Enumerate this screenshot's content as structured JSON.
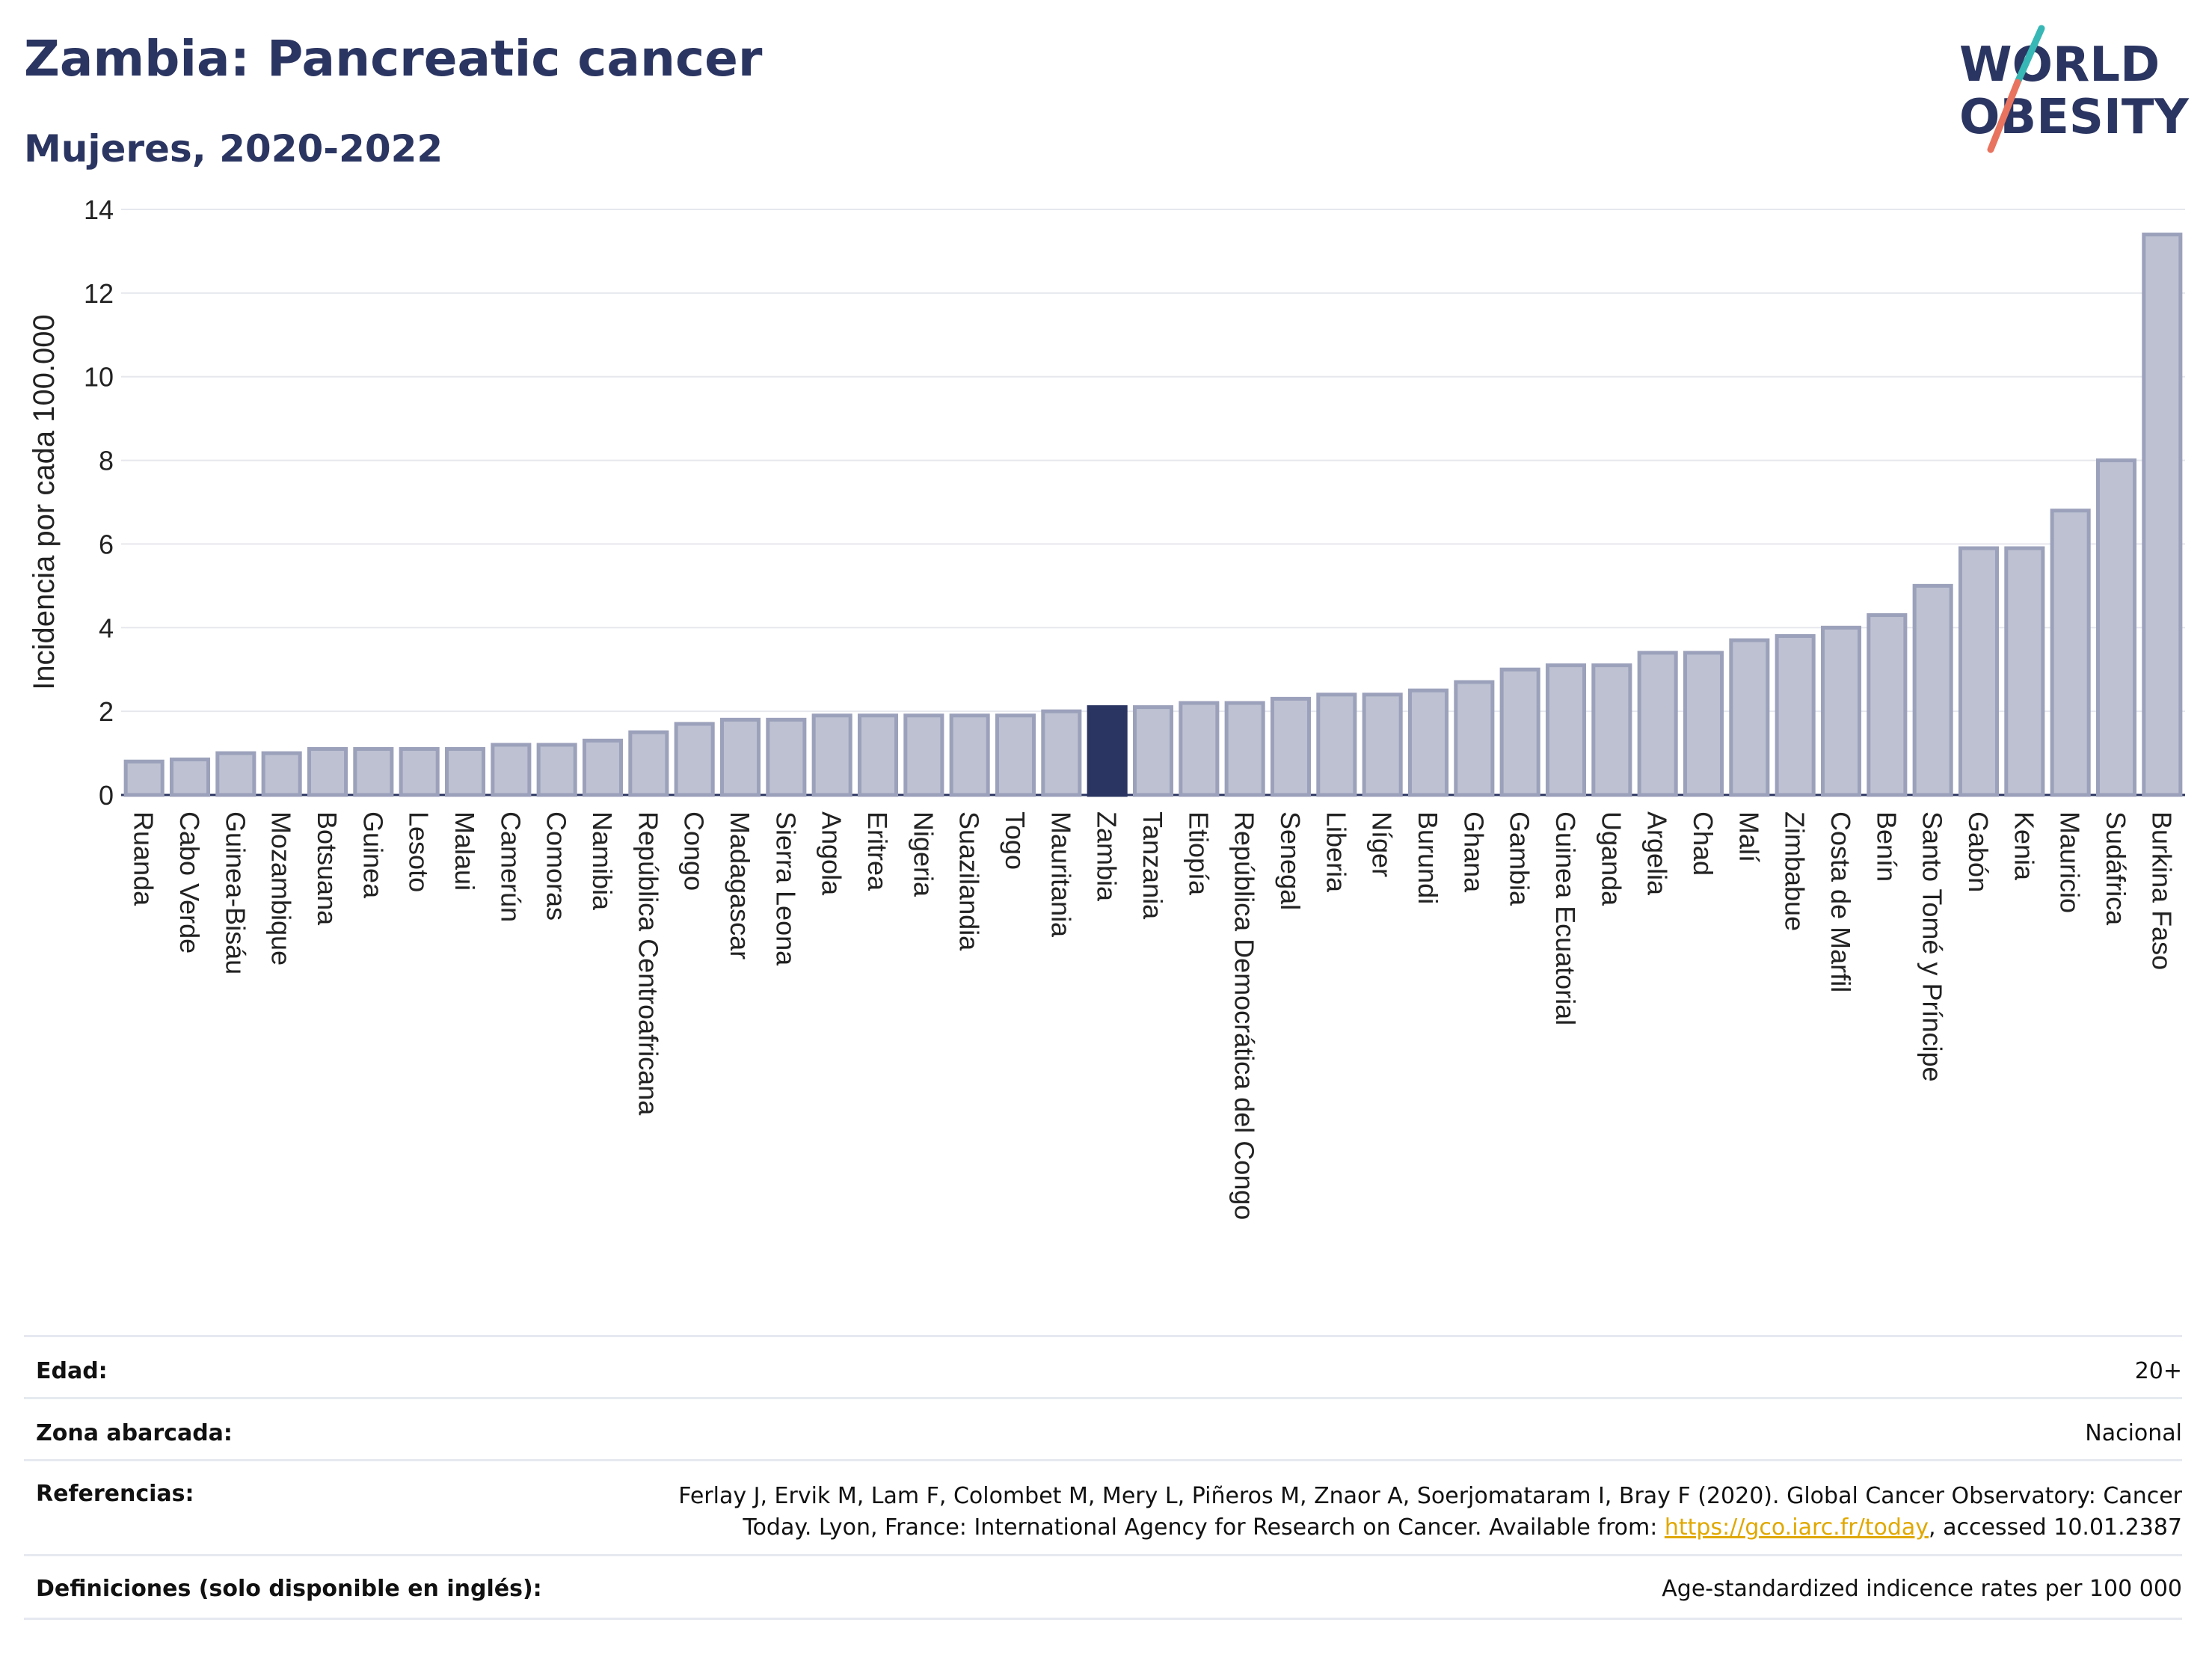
{
  "header": {
    "title": "Zambia: Pancreatic cancer",
    "subtitle": "Mujeres, 2020-2022"
  },
  "logo": {
    "line1": "WORLD",
    "line2": "OBESITY"
  },
  "colors": {
    "title": "#2b3561",
    "bar": "#bdc1d1",
    "bar_border": "#9ca1bb",
    "highlight": "#2b3561",
    "grid": "#e6e8ee",
    "logo_teal": "#37b7b5",
    "logo_coral": "#e8735e",
    "link": "#e0a800"
  },
  "chart_data": {
    "type": "bar",
    "ylabel": "Incidencia por cada 100.000",
    "xlabel": "",
    "ylim": [
      0,
      14
    ],
    "yticks": [
      0,
      2,
      4,
      6,
      8,
      10,
      12,
      14
    ],
    "highlight": "Zambia",
    "categories": [
      "Ruanda",
      "Cabo Verde",
      "Guinea-Bisáu",
      "Mozambique",
      "Botsuana",
      "Guinea",
      "Lesoto",
      "Malaui",
      "Camerún",
      "Comoras",
      "Namibia",
      "República Centroafricana",
      "Congo",
      "Madagascar",
      "Sierra Leona",
      "Angola",
      "Eritrea",
      "Nigeria",
      "Suazilandia",
      "Togo",
      "Mauritania",
      "Zambia",
      "Tanzania",
      "Etiopía",
      "República Democrática del Congo",
      "Senegal",
      "Liberia",
      "Níger",
      "Burundi",
      "Ghana",
      "Gambia",
      "Guinea Ecuatorial",
      "Uganda",
      "Argelia",
      "Chad",
      "Malí",
      "Zimbabue",
      "Costa de Marfil",
      "Benín",
      "Santo Tomé y Príncipe",
      "Gabón",
      "Kenia",
      "Mauricio",
      "Sudáfrica",
      "Burkina Faso"
    ],
    "values": [
      0.8,
      0.85,
      1.0,
      1.0,
      1.1,
      1.1,
      1.1,
      1.1,
      1.2,
      1.2,
      1.3,
      1.5,
      1.7,
      1.8,
      1.8,
      1.9,
      1.9,
      1.9,
      1.9,
      1.9,
      2.0,
      2.1,
      2.1,
      2.2,
      2.2,
      2.3,
      2.4,
      2.4,
      2.5,
      2.7,
      3.0,
      3.1,
      3.1,
      3.4,
      3.4,
      3.7,
      3.8,
      4.0,
      4.3,
      5.0,
      5.9,
      5.9,
      6.8,
      8.0,
      13.4
    ]
  },
  "info": {
    "rows": [
      {
        "label": "Edad:",
        "value": "20+"
      },
      {
        "label": "Zona abarcada:",
        "value": "Nacional"
      },
      {
        "label": "Referencias:",
        "value_line1": "Ferlay J, Ervik M, Lam F, Colombet M, Mery L, Piñeros M, Znaor A, Soerjomataram I, Bray F (2020). Global Cancer Observatory: Cancer",
        "value_line2_pre": "Today. Lyon, France: International Agency for Research on Cancer. Available from: ",
        "link": "https://gco.iarc.fr/today",
        "value_line2_post": ", accessed 10.01.2387"
      },
      {
        "label": "Definiciones (solo disponible en inglés):",
        "value": "Age-standardized indicence rates per 100 000"
      }
    ]
  }
}
